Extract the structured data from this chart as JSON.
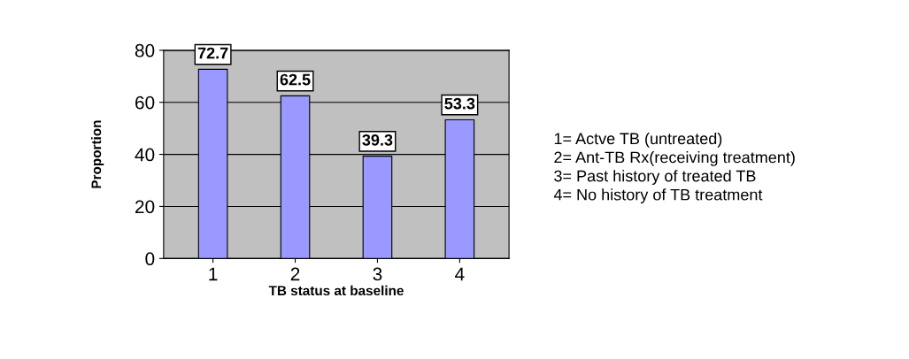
{
  "chart_data": {
    "type": "bar",
    "xlabel": "TB status at baseline",
    "ylabel": "Proportion",
    "categories": [
      "1",
      "2",
      "3",
      "4"
    ],
    "values": [
      72.7,
      62.5,
      39.3,
      53.3
    ],
    "color": "#9999ff",
    "ylim": [
      0,
      80
    ],
    "yticks": [
      0,
      20,
      40,
      60,
      80
    ],
    "grid": "y",
    "data_labels": true,
    "annotations": [
      "1= Actve TB (untreated)",
      "2= Ant-TB Rx(receiving treatment)",
      "3= Past history of treated TB",
      "4= No history of TB treatment"
    ]
  }
}
